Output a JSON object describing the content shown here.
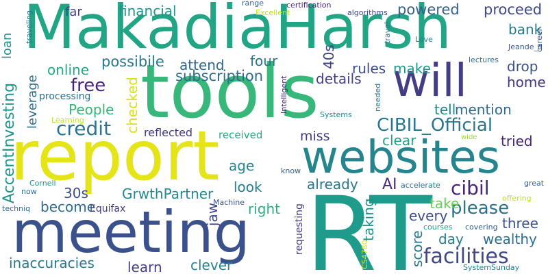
{
  "words": {
    "makadiaharsh": "MakadiaHarsh",
    "tools": "tools",
    "report": "report",
    "rt": "RT",
    "meeting": "meeting",
    "websites": "websites",
    "will": "will",
    "cibil_official": "CIBIL_Official",
    "facilities": "facilities",
    "cibil": "cibil",
    "please": "please",
    "financial": "financial",
    "powered": "powered",
    "proceed": "proceed",
    "far": "far",
    "loan": "loan",
    "online": "online",
    "possibile": "possibile",
    "attend": "attend",
    "four": "four",
    "subscription": "subscription",
    "40s": "40s",
    "rules": "rules",
    "make": "make",
    "drop": "drop",
    "home": "home",
    "bank": "bank",
    "free": "free",
    "details": "details",
    "tell": "tell",
    "mention": "mention",
    "people": "People",
    "credit": "credit",
    "checked": "checked",
    "leverage": "leverage",
    "processing": "processing",
    "learning": "Learning",
    "accentinvesting": "AccentInvesting",
    "reflected": "reflected",
    "received": "received",
    "miss": "miss",
    "clear": "clear",
    "tried": "tried",
    "age": "age",
    "look": "look",
    "already": "already",
    "ai": "AI",
    "grwthpartner": "GrwthPartner",
    "30s": "30s",
    "become": "become",
    "equifax": "Equifax",
    "right": "right",
    "jaw": "jaw",
    "take": "take",
    "every": "every",
    "three": "three",
    "day": "day",
    "wealthy": "wealthy",
    "score": "score",
    "taking": "taking",
    "inaccuracies": "inaccuracies",
    "learn": "learn",
    "clever": "clever",
    "traveling": "traveling",
    "range": "range",
    "excellent": "Excellent",
    "certification": "certification",
    "algorithms": "algorithms",
    "career": "career",
    "travel": "travel",
    "love": "Love",
    "jeande_d": "Jeande_d",
    "lectures": "lectures",
    "intelligent": "Intelligent",
    "needed": "needed",
    "systems": "Systems",
    "wide": "wide",
    "cornell": "Cornell",
    "now": "now",
    "techniq": "techniq",
    "know": "know",
    "accelerate": "accelerate",
    "great": "great",
    "offering": "offering",
    "machine": "Machine",
    "requesting": "requesting",
    "courses": "courses",
    "covering": "covering",
    "cs4780": "CS4780",
    "systemsunday": "SystemSunday"
  }
}
